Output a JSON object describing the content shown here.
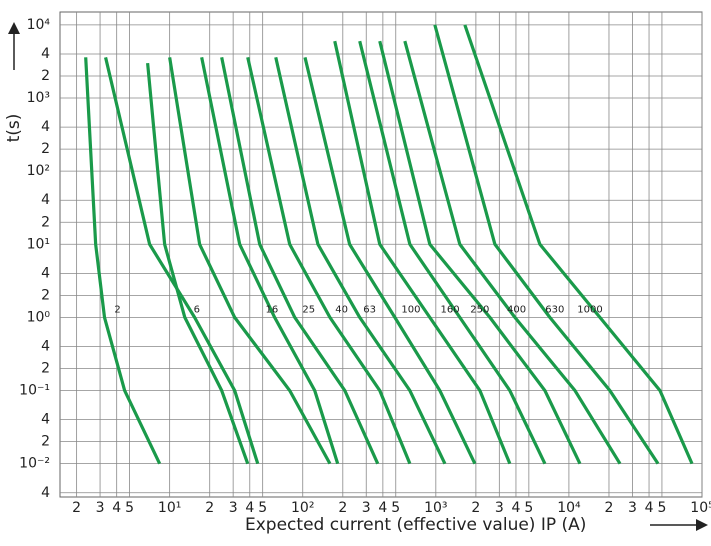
{
  "chart_data": {
    "type": "line",
    "xscale": "log",
    "yscale": "log",
    "grid": true,
    "color": "#1a9a4a",
    "y_label": "t(s)",
    "x_label": "Expected current (effective value)  IP (A)",
    "xlim": [
      1.5,
      100000
    ],
    "ylim": [
      0.0035,
      15000
    ],
    "xticks": [
      2,
      3,
      4,
      5,
      {
        "value": 10,
        "label": "10¹"
      },
      {
        "value": 20,
        "label": "2"
      },
      {
        "value": 30,
        "label": "3"
      },
      {
        "value": 40,
        "label": "4"
      },
      {
        "value": 50,
        "label": "5"
      },
      {
        "value": 100,
        "label": "10²"
      },
      {
        "value": 200,
        "label": "2"
      },
      {
        "value": 300,
        "label": "3"
      },
      {
        "value": 400,
        "label": "4"
      },
      {
        "value": 500,
        "label": "5"
      },
      {
        "value": 1000,
        "label": "10³"
      },
      {
        "value": 2000,
        "label": "2"
      },
      {
        "value": 3000,
        "label": "3"
      },
      {
        "value": 4000,
        "label": "4"
      },
      {
        "value": 5000,
        "label": "5"
      },
      {
        "value": 10000,
        "label": "10⁴"
      },
      {
        "value": 20000,
        "label": "2"
      },
      {
        "value": 30000,
        "label": "3"
      },
      {
        "value": 40000,
        "label": "4"
      },
      {
        "value": 50000,
        "label": "5"
      },
      {
        "value": 100000,
        "label": "10⁵"
      }
    ],
    "yticks": [
      {
        "value": 10000,
        "label": "10⁴"
      },
      {
        "value": 4000,
        "label": "4"
      },
      {
        "value": 2000,
        "label": "2"
      },
      {
        "value": 1000,
        "label": "10³"
      },
      {
        "value": 400,
        "label": "4"
      },
      {
        "value": 200,
        "label": "2"
      },
      {
        "value": 100,
        "label": "10²"
      },
      {
        "value": 40,
        "label": "4"
      },
      {
        "value": 20,
        "label": "2"
      },
      {
        "value": 10,
        "label": "10¹"
      },
      4,
      2,
      {
        "value": 1,
        "label": "10⁰"
      },
      {
        "value": 0.4,
        "label": "4"
      },
      {
        "value": 0.2,
        "label": "2"
      },
      {
        "value": 0.1,
        "label": "10⁻¹"
      },
      {
        "value": 0.04,
        "label": "4"
      },
      {
        "value": 0.02,
        "label": "2"
      },
      {
        "value": 0.01,
        "label": "10⁻²"
      },
      {
        "value": 0.004,
        "label": "4"
      }
    ],
    "series": [
      {
        "x": [
          2.34,
          2.78,
          3.24,
          4.59,
          8.41
        ],
        "values": [
          3600,
          10,
          1,
          0.1,
          0.01
        ]
      },
      {
        "x": [
          3.3,
          7.07,
          15.4,
          30.8,
          45.9
        ],
        "values": [
          3600,
          10,
          1,
          0.1,
          0.01
        ]
      },
      {
        "x": [
          6.83,
          9.17,
          13.0,
          24.6,
          38.6
        ],
        "values": [
          3000,
          10,
          1,
          0.1,
          0.01
        ]
      },
      {
        "x": [
          10,
          16.8,
          30.8,
          79.8,
          160
        ],
        "values": [
          3600,
          10,
          1,
          0.1,
          0.01
        ]
      },
      {
        "x": [
          17.4,
          33.6,
          61.5,
          123,
          183
        ],
        "values": [
          3600,
          10,
          1,
          0.1,
          0.01
        ]
      },
      {
        "x": [
          24.6,
          47.5,
          87.1,
          207,
          366
        ],
        "values": [
          3600,
          10,
          1,
          0.1,
          0.01
        ]
      },
      {
        "x": [
          38.6,
          79.8,
          160,
          379,
          638
        ],
        "values": [
          3600,
          10,
          1,
          0.1,
          0.01
        ]
      },
      {
        "x": [
          62.7,
          130,
          268,
          638,
          1170
        ],
        "values": [
          3600,
          10,
          1,
          0.1,
          0.01
        ]
      },
      {
        "x": [
          104,
          225,
          492,
          1072,
          1965
        ],
        "values": [
          3600,
          10,
          1,
          0.1,
          0.01
        ]
      },
      {
        "x": [
          174,
          379,
          901,
          2143,
          3597
        ],
        "values": [
          6000,
          10,
          1,
          0.1,
          0.01
        ]
      },
      {
        "x": [
          268,
          638,
          1514,
          3597,
          6600
        ],
        "values": [
          6000,
          10,
          1,
          0.1,
          0.01
        ]
      },
      {
        "x": [
          379,
          901,
          2547,
          6600,
          12100
        ],
        "values": [
          6000,
          10,
          1,
          0.1,
          0.01
        ]
      },
      {
        "x": [
          585,
          1514,
          3927,
          11100,
          24200
        ],
        "values": [
          6000,
          10,
          1,
          0.1,
          0.01
        ]
      },
      {
        "x": [
          983,
          2779,
          7190,
          20300,
          46700
        ],
        "values": [
          10000,
          10,
          1,
          0.1,
          0.01
        ]
      },
      {
        "x": [
          1652,
          6050,
          17100,
          48300,
          84100
        ],
        "values": [
          10000,
          10,
          1,
          0.1,
          0.01
        ]
      }
    ],
    "annotations": [
      {
        "text": "2",
        "x": 4.06,
        "y": 1.29
      },
      {
        "text": "6",
        "x": 16,
        "y": 1.29
      },
      {
        "text": "16",
        "x": 58.6,
        "y": 1.29
      },
      {
        "text": "25",
        "x": 111,
        "y": 1.29
      },
      {
        "text": "40",
        "x": 196,
        "y": 1.29
      },
      {
        "text": "63",
        "x": 318,
        "y": 1.29
      },
      {
        "text": "100",
        "x": 650,
        "y": 1.29
      },
      {
        "text": "160",
        "x": 1280,
        "y": 1.29
      },
      {
        "text": "250",
        "x": 2140,
        "y": 1.29
      },
      {
        "text": "400",
        "x": 4040,
        "y": 1.29
      },
      {
        "text": "630",
        "x": 7840,
        "y": 1.29
      },
      {
        "text": "1000",
        "x": 14400,
        "y": 1.29
      }
    ]
  }
}
